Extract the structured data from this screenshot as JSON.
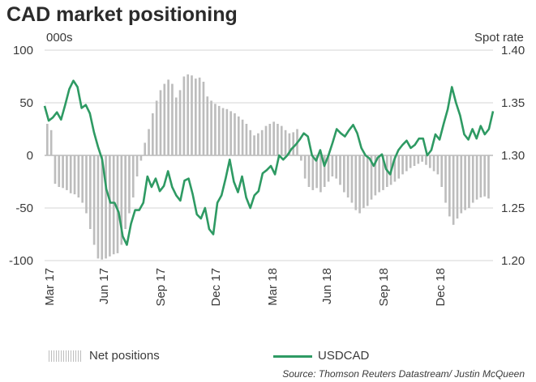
{
  "title": "CAD market positioning",
  "left_unit": "000s",
  "right_unit": "Spot rate",
  "source": "Source: Thomson Reuters Datastream/ Justin McQueen",
  "colors": {
    "bars": "#bdbdbd",
    "line": "#2e9a63",
    "grid": "#d6d6d6"
  },
  "chart_data": {
    "type": "bar+line",
    "left_axis": {
      "ylim": [
        -100,
        100
      ],
      "ticks": [
        100,
        50,
        0,
        -50,
        -100
      ]
    },
    "right_axis": {
      "ylim": [
        1.2,
        1.4
      ],
      "ticks": [
        "1.40",
        "1.35",
        "1.30",
        "1.25",
        "1.20"
      ]
    },
    "x_labels": [
      "Mar 17",
      "Jun 17",
      "Sep 17",
      "Dec 17",
      "Mar 18",
      "Jun 18",
      "Sep 18",
      "Dec 18"
    ],
    "legend": [
      {
        "name": "Net positions",
        "style": "bars"
      },
      {
        "name": "USDCAD",
        "style": "line"
      }
    ],
    "series": [
      {
        "name": "Net positions",
        "axis": "left",
        "values": [
          30,
          24,
          -27,
          -30,
          -31,
          -33,
          -36,
          -37,
          -40,
          -45,
          -55,
          -70,
          -85,
          -98,
          -99,
          -98,
          -96,
          -94,
          -93,
          -85,
          -70,
          -55,
          -40,
          -20,
          -5,
          12,
          25,
          40,
          52,
          62,
          68,
          72,
          68,
          55,
          62,
          75,
          77,
          76,
          73,
          74,
          70,
          56,
          52,
          49,
          47,
          45,
          44,
          42,
          40,
          37,
          34,
          30,
          24,
          19,
          21,
          24,
          28,
          30,
          32,
          30,
          28,
          24,
          21,
          22,
          25,
          -5,
          -22,
          -30,
          -33,
          -31,
          -35,
          -30,
          -25,
          -20,
          -22,
          -28,
          -35,
          -40,
          -45,
          -52,
          -55,
          -50,
          -48,
          -42,
          -38,
          -35,
          -33,
          -30,
          -28,
          -25,
          -22,
          -18,
          -15,
          -12,
          -10,
          -8,
          -6,
          -9,
          -12,
          -15,
          -18,
          -30,
          -45,
          -58,
          -66,
          -60,
          -55,
          -52,
          -50,
          -45,
          -42,
          -40,
          -39,
          -41
        ]
      },
      {
        "name": "USDCAD",
        "axis": "right",
        "values": [
          1.347,
          1.333,
          1.336,
          1.341,
          1.334,
          1.348,
          1.363,
          1.371,
          1.365,
          1.345,
          1.348,
          1.34,
          1.322,
          1.308,
          1.296,
          1.268,
          1.255,
          1.255,
          1.246,
          1.223,
          1.215,
          1.235,
          1.248,
          1.248,
          1.255,
          1.28,
          1.27,
          1.278,
          1.266,
          1.271,
          1.285,
          1.27,
          1.262,
          1.257,
          1.276,
          1.278,
          1.263,
          1.244,
          1.24,
          1.25,
          1.23,
          1.225,
          1.255,
          1.262,
          1.278,
          1.296,
          1.275,
          1.265,
          1.28,
          1.26,
          1.25,
          1.262,
          1.266,
          1.283,
          1.286,
          1.29,
          1.282,
          1.3,
          1.296,
          1.3,
          1.306,
          1.31,
          1.315,
          1.321,
          1.318,
          1.3,
          1.295,
          1.305,
          1.29,
          1.3,
          1.312,
          1.325,
          1.321,
          1.318,
          1.324,
          1.329,
          1.321,
          1.307,
          1.3,
          1.297,
          1.29,
          1.298,
          1.301,
          1.287,
          1.282,
          1.296,
          1.305,
          1.31,
          1.314,
          1.307,
          1.31,
          1.316,
          1.316,
          1.3,
          1.305,
          1.32,
          1.315,
          1.33,
          1.344,
          1.365,
          1.35,
          1.338,
          1.32,
          1.315,
          1.325,
          1.316,
          1.328,
          1.32,
          1.325,
          1.342
        ]
      }
    ]
  }
}
